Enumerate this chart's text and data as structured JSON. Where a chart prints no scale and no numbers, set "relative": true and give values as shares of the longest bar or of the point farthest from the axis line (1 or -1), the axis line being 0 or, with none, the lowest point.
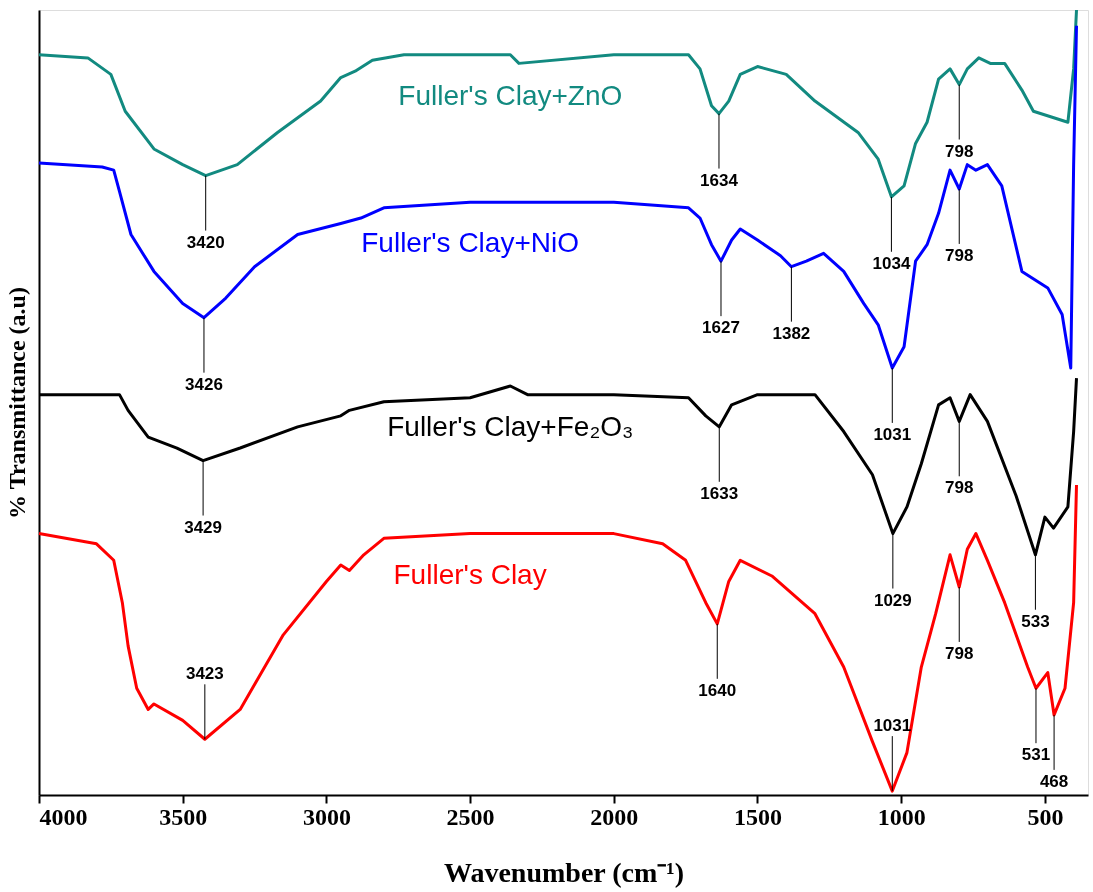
{
  "chart_data": {
    "type": "line",
    "relative": true,
    "xlabel": "Wavenumber (cm⁻¹)",
    "ylabel": "% Transmittance (a.u)",
    "xlim": [
      4000,
      350
    ],
    "xticks": [
      4000,
      3500,
      3000,
      2500,
      2000,
      1500,
      1000,
      500
    ],
    "legend": false,
    "grid": false,
    "marker": "none",
    "line_style": "solid",
    "series": [
      {
        "name": "Fuller's Clay+ZnO",
        "color": "#128a80",
        "x": [
          4000,
          3830,
          3750,
          3700,
          3600,
          3500,
          3420,
          3310,
          3170,
          3020,
          2950,
          2900,
          2840,
          2730,
          2360,
          2330,
          2000,
          1740,
          1700,
          1660,
          1634,
          1600,
          1560,
          1500,
          1400,
          1300,
          1150,
          1080,
          1034,
          990,
          950,
          910,
          870,
          830,
          798,
          770,
          730,
          690,
          640,
          580,
          540,
          480,
          420,
          400,
          390
        ],
        "values": [
          0.943,
          0.939,
          0.918,
          0.871,
          0.823,
          0.803,
          0.789,
          0.803,
          0.844,
          0.884,
          0.914,
          0.922,
          0.936,
          0.943,
          0.943,
          0.932,
          0.943,
          0.943,
          0.925,
          0.878,
          0.868,
          0.884,
          0.918,
          0.928,
          0.918,
          0.884,
          0.844,
          0.81,
          0.762,
          0.776,
          0.83,
          0.857,
          0.912,
          0.925,
          0.905,
          0.925,
          0.939,
          0.932,
          0.932,
          0.898,
          0.871,
          0.864,
          0.857,
          0.925,
          1.0
        ]
      },
      {
        "name": "Fuller's Clay+NiO",
        "color": "#0000ff",
        "x": [
          4000,
          3780,
          3740,
          3720,
          3680,
          3600,
          3500,
          3426,
          3350,
          3250,
          3100,
          2950,
          2880,
          2800,
          2500,
          2000,
          1740,
          1700,
          1660,
          1627,
          1590,
          1560,
          1500,
          1420,
          1382,
          1330,
          1270,
          1200,
          1130,
          1080,
          1031,
          990,
          950,
          910,
          870,
          830,
          798,
          770,
          740,
          700,
          650,
          580,
          520,
          490,
          440,
          410,
          400,
          390
        ],
        "values": [
          0.805,
          0.8,
          0.796,
          0.769,
          0.714,
          0.667,
          0.626,
          0.608,
          0.633,
          0.673,
          0.714,
          0.728,
          0.735,
          0.748,
          0.755,
          0.755,
          0.748,
          0.735,
          0.701,
          0.68,
          0.707,
          0.721,
          0.707,
          0.687,
          0.673,
          0.68,
          0.69,
          0.667,
          0.626,
          0.599,
          0.544,
          0.571,
          0.68,
          0.701,
          0.741,
          0.796,
          0.772,
          0.803,
          0.796,
          0.803,
          0.776,
          0.667,
          0.653,
          0.646,
          0.612,
          0.544,
          0.803,
          0.98
        ]
      },
      {
        "name": "Fuller's Clay+Fe₂O₃",
        "color": "#000000",
        "x": [
          4000,
          3720,
          3690,
          3620,
          3520,
          3429,
          3300,
          3100,
          2950,
          2920,
          2800,
          2500,
          2360,
          2300,
          2000,
          1740,
          1680,
          1633,
          1590,
          1500,
          1300,
          1200,
          1100,
          1029,
          980,
          930,
          870,
          830,
          798,
          760,
          700,
          600,
          533,
          500,
          470,
          420,
          400,
          390
        ],
        "values": [
          0.51,
          0.51,
          0.49,
          0.456,
          0.442,
          0.426,
          0.442,
          0.469,
          0.483,
          0.49,
          0.501,
          0.506,
          0.521,
          0.51,
          0.51,
          0.506,
          0.483,
          0.469,
          0.497,
          0.51,
          0.51,
          0.463,
          0.408,
          0.333,
          0.367,
          0.422,
          0.497,
          0.506,
          0.476,
          0.51,
          0.476,
          0.381,
          0.306,
          0.354,
          0.34,
          0.367,
          0.463,
          0.531
        ]
      },
      {
        "name": "Fuller's Clay",
        "color": "#ff0000",
        "x": [
          4000,
          3800,
          3740,
          3710,
          3690,
          3660,
          3620,
          3600,
          3500,
          3423,
          3300,
          3150,
          3000,
          2950,
          2920,
          2870,
          2800,
          2500,
          2000,
          1830,
          1750,
          1680,
          1640,
          1600,
          1560,
          1450,
          1300,
          1200,
          1100,
          1031,
          980,
          930,
          880,
          830,
          798,
          770,
          740,
          700,
          640,
          560,
          531,
          490,
          468,
          430,
          400,
          390
        ],
        "values": [
          0.333,
          0.32,
          0.299,
          0.245,
          0.19,
          0.136,
          0.109,
          0.116,
          0.095,
          0.071,
          0.109,
          0.204,
          0.272,
          0.293,
          0.286,
          0.306,
          0.327,
          0.333,
          0.333,
          0.32,
          0.299,
          0.245,
          0.218,
          0.272,
          0.299,
          0.279,
          0.231,
          0.163,
          0.068,
          0.005,
          0.054,
          0.163,
          0.231,
          0.306,
          0.265,
          0.313,
          0.333,
          0.299,
          0.245,
          0.163,
          0.136,
          0.156,
          0.102,
          0.136,
          0.245,
          0.395
        ]
      }
    ],
    "annotations": [
      {
        "text": "3420",
        "x": 3420,
        "y": 0.789
      },
      {
        "text": "1634",
        "x": 1634,
        "y": 0.868
      },
      {
        "text": "1034",
        "x": 1034,
        "y": 0.762
      },
      {
        "text": "798",
        "x": 798,
        "y": 0.905
      },
      {
        "text": "3426",
        "x": 3426,
        "y": 0.608
      },
      {
        "text": "1627",
        "x": 1627,
        "y": 0.68
      },
      {
        "text": "1382",
        "x": 1382,
        "y": 0.673
      },
      {
        "text": "1031",
        "x": 1031,
        "y": 0.544
      },
      {
        "text": "798",
        "x": 798,
        "y": 0.772
      },
      {
        "text": "3429",
        "x": 3429,
        "y": 0.426
      },
      {
        "text": "1633",
        "x": 1633,
        "y": 0.469
      },
      {
        "text": "1029",
        "x": 1029,
        "y": 0.333
      },
      {
        "text": "798",
        "x": 798,
        "y": 0.476
      },
      {
        "text": "533",
        "x": 533,
        "y": 0.306
      },
      {
        "text": "3423",
        "x": 3423,
        "y": 0.071
      },
      {
        "text": "1640",
        "x": 1640,
        "y": 0.218
      },
      {
        "text": "1031",
        "x": 1031,
        "y": 0.005
      },
      {
        "text": "798",
        "x": 798,
        "y": 0.265
      },
      {
        "text": "531",
        "x": 531,
        "y": 0.136
      },
      {
        "text": "468",
        "x": 468,
        "y": 0.102
      }
    ]
  }
}
